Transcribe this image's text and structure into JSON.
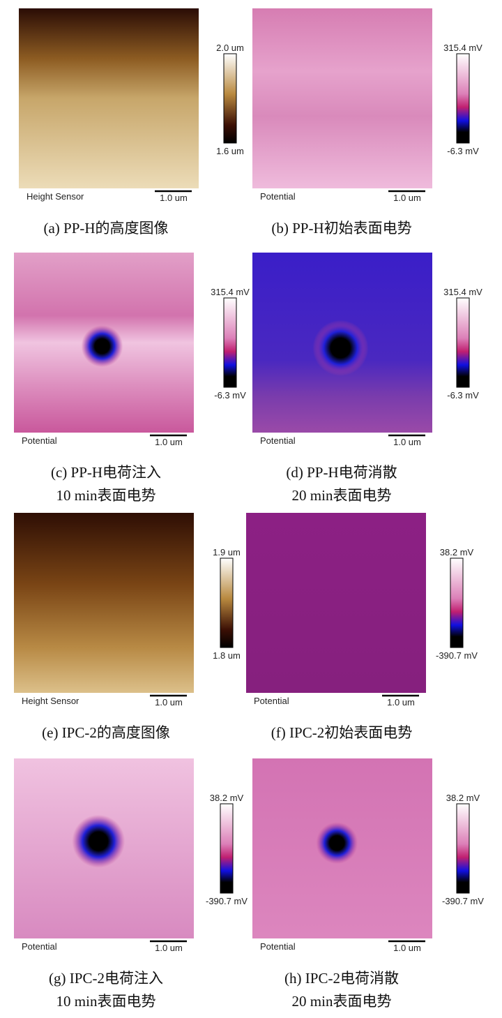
{
  "panels": [
    {
      "image_label": "Height Sensor",
      "scale_bar": "1.0 um",
      "colorbar_max": "2.0 um",
      "colorbar_min": "1.6 um",
      "caption": [
        "(a) PP-H的高度图像"
      ]
    },
    {
      "image_label": "Potential",
      "scale_bar": "1.0 um",
      "colorbar_max": "315.4 mV",
      "colorbar_min": "-6.3 mV",
      "caption": [
        "(b) PP-H初始表面电势"
      ]
    },
    {
      "image_label": "Potential",
      "scale_bar": "1.0 um",
      "colorbar_max": "315.4 mV",
      "colorbar_min": "-6.3 mV",
      "caption": [
        "(c) PP-H电荷注入",
        "10 min表面电势"
      ]
    },
    {
      "image_label": "Potential",
      "scale_bar": "1.0 um",
      "colorbar_max": "315.4 mV",
      "colorbar_min": "-6.3 mV",
      "caption": [
        "(d) PP-H电荷消散",
        "20 min表面电势"
      ]
    },
    {
      "image_label": "Height Sensor",
      "scale_bar": "1.0 um",
      "colorbar_max": "1.9 um",
      "colorbar_min": "1.8 um",
      "caption": [
        "(e) IPC-2的高度图像"
      ]
    },
    {
      "image_label": "Potential",
      "scale_bar": "1.0 um",
      "colorbar_max": "38.2 mV",
      "colorbar_min": "-390.7 mV",
      "caption": [
        "(f) IPC-2初始表面电势"
      ]
    },
    {
      "image_label": "Potential",
      "scale_bar": "1.0 um",
      "colorbar_max": "38.2 mV",
      "colorbar_min": "-390.7 mV",
      "caption": [
        "(g) IPC-2电荷注入",
        "10 min表面电势"
      ]
    },
    {
      "image_label": "Potential",
      "scale_bar": "1.0 um",
      "colorbar_max": "38.2 mV",
      "colorbar_min": "-390.7 mV",
      "caption": [
        "(h) IPC-2电荷消散",
        "20 min表面电势"
      ]
    }
  ]
}
